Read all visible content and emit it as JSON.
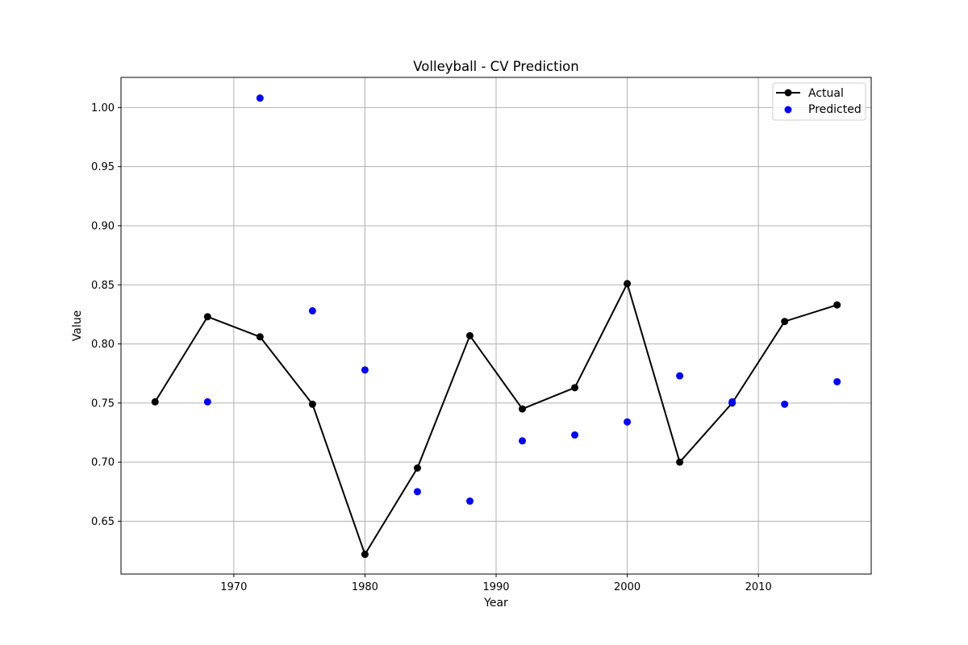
{
  "chart_data": {
    "type": "line",
    "title": "Volleyball - CV Prediction",
    "xlabel": "Year",
    "ylabel": "Value",
    "xlim": [
      1961.4,
      2018.6
    ],
    "ylim": [
      0.6053,
      1.0255
    ],
    "grid": true,
    "legend_position": "top-right",
    "x_ticks": [
      1970,
      1980,
      1990,
      2000,
      2010
    ],
    "y_ticks": [
      0.65,
      0.7,
      0.75,
      0.8,
      0.85,
      0.9,
      0.95,
      1.0
    ],
    "y_tick_labels": [
      "0.65",
      "0.70",
      "0.75",
      "0.80",
      "0.85",
      "0.90",
      "0.95",
      "1.00"
    ],
    "series": [
      {
        "name": "Actual",
        "style": "line-marker",
        "color": "#000000",
        "x": [
          1964,
          1968,
          1972,
          1976,
          1980,
          1984,
          1988,
          1992,
          1996,
          2000,
          2004,
          2008,
          2012,
          2016
        ],
        "y": [
          0.751,
          0.823,
          0.806,
          0.749,
          0.622,
          0.695,
          0.807,
          0.745,
          0.763,
          0.851,
          0.7,
          0.75,
          0.819,
          0.833
        ]
      },
      {
        "name": "Predicted",
        "style": "scatter",
        "color": "#0000ff",
        "x": [
          1968,
          1972,
          1976,
          1980,
          1984,
          1988,
          1992,
          1996,
          2000,
          2004,
          2008,
          2012,
          2016
        ],
        "y": [
          0.751,
          1.008,
          0.828,
          0.778,
          0.675,
          0.667,
          0.718,
          0.723,
          0.734,
          0.773,
          0.751,
          0.749,
          0.768
        ]
      }
    ]
  }
}
